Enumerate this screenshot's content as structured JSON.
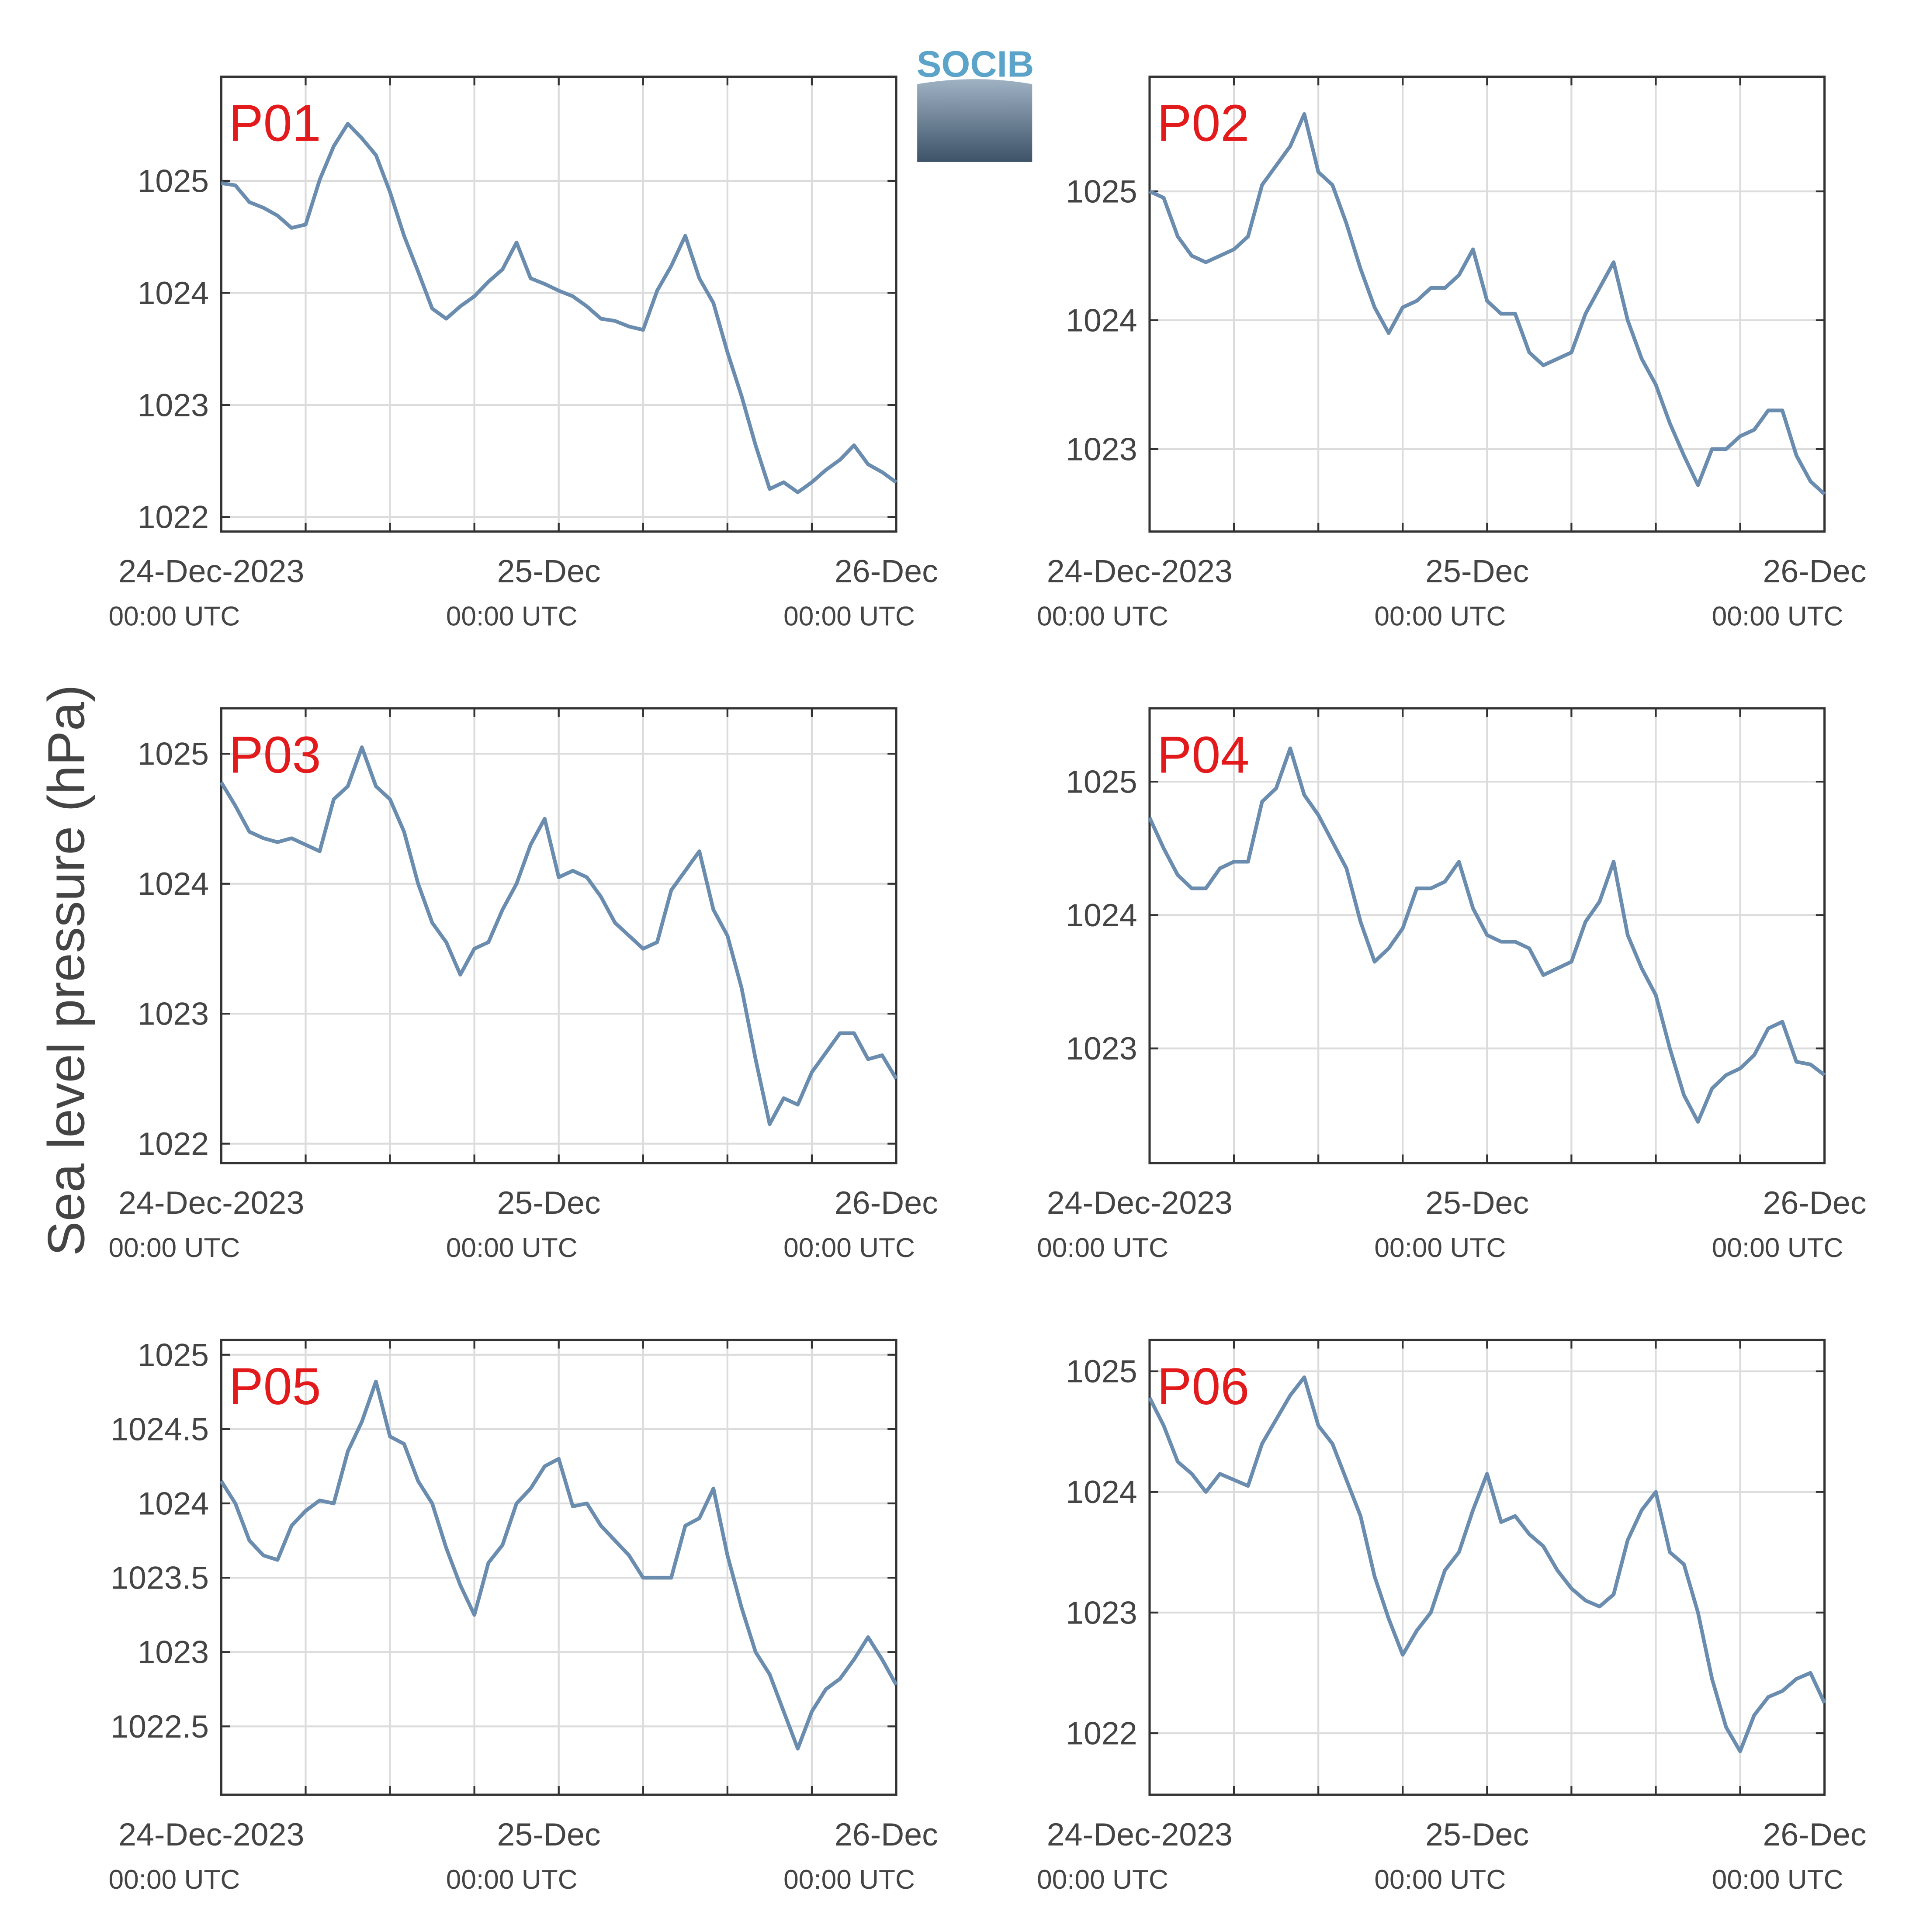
{
  "ylabel": "Sea level pressure (hPa)",
  "logo": "SOCIB",
  "chart_data": [
    {
      "type": "line",
      "title": "P01",
      "color": "#6a8caf",
      "ylim": [
        1021.87,
        1025.93
      ],
      "yticks": [
        1022,
        1023,
        1024,
        1025
      ],
      "xlim": [
        0,
        48
      ],
      "xticks": [
        {
          "value": 0,
          "label": "24-Dec-2023",
          "time": "00:00 UTC"
        },
        {
          "value": 6,
          "label": null
        },
        {
          "value": 12,
          "label": null
        },
        {
          "value": 18,
          "label": null
        },
        {
          "value": 24,
          "label": "25-Dec",
          "time": "00:00 UTC"
        },
        {
          "value": 30,
          "label": null
        },
        {
          "value": 36,
          "label": null
        },
        {
          "value": 42,
          "label": null
        },
        {
          "value": 48,
          "label": "26-Dec",
          "time": "00:00 UTC"
        }
      ],
      "x": [
        0,
        1,
        2,
        3,
        4,
        5,
        6,
        7,
        8,
        9,
        10,
        11,
        12,
        13,
        14,
        15,
        16,
        17,
        18,
        19,
        20,
        21,
        22,
        23,
        24,
        25,
        26,
        27,
        28,
        29,
        30,
        31,
        32,
        33,
        34,
        35,
        36,
        37,
        38,
        39,
        40,
        41,
        42,
        43,
        44,
        45,
        46,
        47,
        48
      ],
      "values": [
        1024.98,
        1024.96,
        1024.81,
        1024.76,
        1024.69,
        1024.58,
        1024.61,
        1025.01,
        1025.31,
        1025.51,
        1025.38,
        1025.23,
        1024.9,
        1024.51,
        1024.19,
        1023.86,
        1023.77,
        1023.88,
        1023.97,
        1024.1,
        1024.21,
        1024.45,
        1024.13,
        1024.08,
        1024.02,
        1023.97,
        1023.88,
        1023.77,
        1023.75,
        1023.7,
        1023.67,
        1024.02,
        1024.24,
        1024.51,
        1024.13,
        1023.91,
        1023.47,
        1023.08,
        1022.64,
        1022.25,
        1022.31,
        1022.22,
        1022.31,
        1022.42,
        1022.51,
        1022.64,
        1022.47,
        1022.4,
        1022.31
      ]
    },
    {
      "type": "line",
      "title": "P02",
      "color": "#6a8caf",
      "ylim": [
        1022.36,
        1025.89
      ],
      "yticks": [
        1023,
        1024,
        1025
      ],
      "xlim": [
        0,
        48
      ],
      "xticks": [
        {
          "value": 0,
          "label": "24-Dec-2023",
          "time": "00:00 UTC"
        },
        {
          "value": 6,
          "label": null
        },
        {
          "value": 12,
          "label": null
        },
        {
          "value": 18,
          "label": null
        },
        {
          "value": 24,
          "label": "25-Dec",
          "time": "00:00 UTC"
        },
        {
          "value": 30,
          "label": null
        },
        {
          "value": 36,
          "label": null
        },
        {
          "value": 42,
          "label": null
        },
        {
          "value": 48,
          "label": "26-Dec",
          "time": "00:00 UTC"
        }
      ],
      "x": [
        0,
        1,
        2,
        3,
        4,
        5,
        6,
        7,
        8,
        9,
        10,
        11,
        12,
        13,
        14,
        15,
        16,
        17,
        18,
        19,
        20,
        21,
        22,
        23,
        24,
        25,
        26,
        27,
        28,
        29,
        30,
        31,
        32,
        33,
        34,
        35,
        36,
        37,
        38,
        39,
        40,
        41,
        42,
        43,
        44,
        45,
        46,
        47,
        48
      ],
      "values": [
        1025.0,
        1024.95,
        1024.65,
        1024.5,
        1024.45,
        1024.5,
        1024.55,
        1024.65,
        1025.05,
        1025.2,
        1025.35,
        1025.6,
        1025.15,
        1025.05,
        1024.75,
        1024.4,
        1024.1,
        1023.9,
        1024.1,
        1024.15,
        1024.25,
        1024.25,
        1024.35,
        1024.55,
        1024.15,
        1024.05,
        1024.05,
        1023.75,
        1023.65,
        1023.7,
        1023.75,
        1024.05,
        1024.25,
        1024.45,
        1024.0,
        1023.7,
        1023.5,
        1023.2,
        1022.95,
        1022.72,
        1023.0,
        1023.0,
        1023.1,
        1023.15,
        1023.3,
        1023.3,
        1022.95,
        1022.75,
        1022.65
      ]
    },
    {
      "type": "line",
      "title": "P03",
      "color": "#6a8caf",
      "ylim": [
        1021.85,
        1025.35
      ],
      "yticks": [
        1022,
        1023,
        1024,
        1025
      ],
      "xlim": [
        0,
        48
      ],
      "xticks": [
        {
          "value": 0,
          "label": "24-Dec-2023",
          "time": "00:00 UTC"
        },
        {
          "value": 6,
          "label": null
        },
        {
          "value": 12,
          "label": null
        },
        {
          "value": 18,
          "label": null
        },
        {
          "value": 24,
          "label": "25-Dec",
          "time": "00:00 UTC"
        },
        {
          "value": 30,
          "label": null
        },
        {
          "value": 36,
          "label": null
        },
        {
          "value": 42,
          "label": null
        },
        {
          "value": 48,
          "label": "26-Dec",
          "time": "00:00 UTC"
        }
      ],
      "x": [
        0,
        1,
        2,
        3,
        4,
        5,
        6,
        7,
        8,
        9,
        10,
        11,
        12,
        13,
        14,
        15,
        16,
        17,
        18,
        19,
        20,
        21,
        22,
        23,
        24,
        25,
        26,
        27,
        28,
        29,
        30,
        31,
        32,
        33,
        34,
        35,
        36,
        37,
        38,
        39,
        40,
        41,
        42,
        43,
        44,
        45,
        46,
        47,
        48
      ],
      "values": [
        1024.78,
        1024.6,
        1024.4,
        1024.35,
        1024.32,
        1024.35,
        1024.3,
        1024.25,
        1024.65,
        1024.75,
        1025.05,
        1024.75,
        1024.65,
        1024.4,
        1024.0,
        1023.7,
        1023.55,
        1023.3,
        1023.5,
        1023.55,
        1023.8,
        1024.0,
        1024.3,
        1024.5,
        1024.05,
        1024.1,
        1024.05,
        1023.9,
        1023.7,
        1023.6,
        1023.5,
        1023.55,
        1023.95,
        1024.1,
        1024.25,
        1023.8,
        1023.6,
        1023.2,
        1022.65,
        1022.15,
        1022.35,
        1022.3,
        1022.55,
        1022.7,
        1022.85,
        1022.85,
        1022.65,
        1022.68,
        1022.5
      ]
    },
    {
      "type": "line",
      "title": "P04",
      "color": "#6a8caf",
      "ylim": [
        1022.14,
        1025.55
      ],
      "yticks": [
        1023,
        1024,
        1025
      ],
      "xlim": [
        0,
        48
      ],
      "xticks": [
        {
          "value": 0,
          "label": "24-Dec-2023",
          "time": "00:00 UTC"
        },
        {
          "value": 6,
          "label": null
        },
        {
          "value": 12,
          "label": null
        },
        {
          "value": 18,
          "label": null
        },
        {
          "value": 24,
          "label": "25-Dec",
          "time": "00:00 UTC"
        },
        {
          "value": 30,
          "label": null
        },
        {
          "value": 36,
          "label": null
        },
        {
          "value": 42,
          "label": null
        },
        {
          "value": 48,
          "label": "26-Dec",
          "time": "00:00 UTC"
        }
      ],
      "x": [
        0,
        1,
        2,
        3,
        4,
        5,
        6,
        7,
        8,
        9,
        10,
        11,
        12,
        13,
        14,
        15,
        16,
        17,
        18,
        19,
        20,
        21,
        22,
        23,
        24,
        25,
        26,
        27,
        28,
        29,
        30,
        31,
        32,
        33,
        34,
        35,
        36,
        37,
        38,
        39,
        40,
        41,
        42,
        43,
        44,
        45,
        46,
        47,
        48
      ],
      "values": [
        1024.73,
        1024.5,
        1024.3,
        1024.2,
        1024.2,
        1024.35,
        1024.4,
        1024.4,
        1024.85,
        1024.95,
        1025.25,
        1024.9,
        1024.75,
        1024.55,
        1024.35,
        1023.95,
        1023.65,
        1023.75,
        1023.9,
        1024.2,
        1024.2,
        1024.25,
        1024.4,
        1024.05,
        1023.85,
        1023.8,
        1023.8,
        1023.75,
        1023.55,
        1023.6,
        1023.65,
        1023.95,
        1024.1,
        1024.4,
        1023.85,
        1023.6,
        1023.4,
        1023.0,
        1022.65,
        1022.45,
        1022.7,
        1022.8,
        1022.85,
        1022.95,
        1023.15,
        1023.2,
        1022.9,
        1022.88,
        1022.8
      ]
    },
    {
      "type": "line",
      "title": "P05",
      "color": "#6a8caf",
      "ylim": [
        1022.04,
        1025.1
      ],
      "yticks": [
        1022.5,
        1023,
        1023.5,
        1024,
        1024.5,
        1025
      ],
      "xlim": [
        0,
        48
      ],
      "xticks": [
        {
          "value": 0,
          "label": "24-Dec-2023",
          "time": "00:00 UTC"
        },
        {
          "value": 6,
          "label": null
        },
        {
          "value": 12,
          "label": null
        },
        {
          "value": 18,
          "label": null
        },
        {
          "value": 24,
          "label": "25-Dec",
          "time": "00:00 UTC"
        },
        {
          "value": 30,
          "label": null
        },
        {
          "value": 36,
          "label": null
        },
        {
          "value": 42,
          "label": null
        },
        {
          "value": 48,
          "label": "26-Dec",
          "time": "00:00 UTC"
        }
      ],
      "x": [
        0,
        1,
        2,
        3,
        4,
        5,
        6,
        7,
        8,
        9,
        10,
        11,
        12,
        13,
        14,
        15,
        16,
        17,
        18,
        19,
        20,
        21,
        22,
        23,
        24,
        25,
        26,
        27,
        28,
        29,
        30,
        31,
        32,
        33,
        34,
        35,
        36,
        37,
        38,
        39,
        40,
        41,
        42,
        43,
        44,
        45,
        46,
        47,
        48
      ],
      "values": [
        1024.15,
        1024.0,
        1023.75,
        1023.65,
        1023.62,
        1023.85,
        1023.95,
        1024.02,
        1024.0,
        1024.35,
        1024.55,
        1024.82,
        1024.45,
        1024.4,
        1024.15,
        1024.0,
        1023.7,
        1023.45,
        1023.25,
        1023.6,
        1023.72,
        1024.0,
        1024.1,
        1024.25,
        1024.3,
        1023.98,
        1024.0,
        1023.85,
        1023.75,
        1023.65,
        1023.5,
        1023.5,
        1023.5,
        1023.85,
        1023.9,
        1024.1,
        1023.65,
        1023.3,
        1023.0,
        1022.85,
        1022.6,
        1022.35,
        1022.6,
        1022.75,
        1022.82,
        1022.95,
        1023.1,
        1022.95,
        1022.78
      ]
    },
    {
      "type": "line",
      "title": "P06",
      "color": "#6a8caf",
      "ylim": [
        1021.49,
        1025.26
      ],
      "yticks": [
        1022,
        1023,
        1024,
        1025
      ],
      "xlim": [
        0,
        48
      ],
      "xticks": [
        {
          "value": 0,
          "label": "24-Dec-2023",
          "time": "00:00 UTC"
        },
        {
          "value": 6,
          "label": null
        },
        {
          "value": 12,
          "label": null
        },
        {
          "value": 18,
          "label": null
        },
        {
          "value": 24,
          "label": "25-Dec",
          "time": "00:00 UTC"
        },
        {
          "value": 30,
          "label": null
        },
        {
          "value": 36,
          "label": null
        },
        {
          "value": 42,
          "label": null
        },
        {
          "value": 48,
          "label": "26-Dec",
          "time": "00:00 UTC"
        }
      ],
      "x": [
        0,
        1,
        2,
        3,
        4,
        5,
        6,
        7,
        8,
        9,
        10,
        11,
        12,
        13,
        14,
        15,
        16,
        17,
        18,
        19,
        20,
        21,
        22,
        23,
        24,
        25,
        26,
        27,
        28,
        29,
        30,
        31,
        32,
        33,
        34,
        35,
        36,
        37,
        38,
        39,
        40,
        41,
        42,
        43,
        44,
        45,
        46,
        47,
        48
      ],
      "values": [
        1024.78,
        1024.55,
        1024.25,
        1024.15,
        1024.0,
        1024.15,
        1024.1,
        1024.05,
        1024.4,
        1024.6,
        1024.8,
        1024.95,
        1024.55,
        1024.4,
        1024.1,
        1023.8,
        1023.3,
        1022.95,
        1022.65,
        1022.85,
        1023.0,
        1023.35,
        1023.5,
        1023.85,
        1024.15,
        1023.75,
        1023.8,
        1023.65,
        1023.55,
        1023.35,
        1023.2,
        1023.1,
        1023.05,
        1023.15,
        1023.6,
        1023.85,
        1024.0,
        1023.5,
        1023.4,
        1023.0,
        1022.45,
        1022.05,
        1021.85,
        1022.15,
        1022.3,
        1022.35,
        1022.45,
        1022.5,
        1022.25
      ]
    }
  ]
}
